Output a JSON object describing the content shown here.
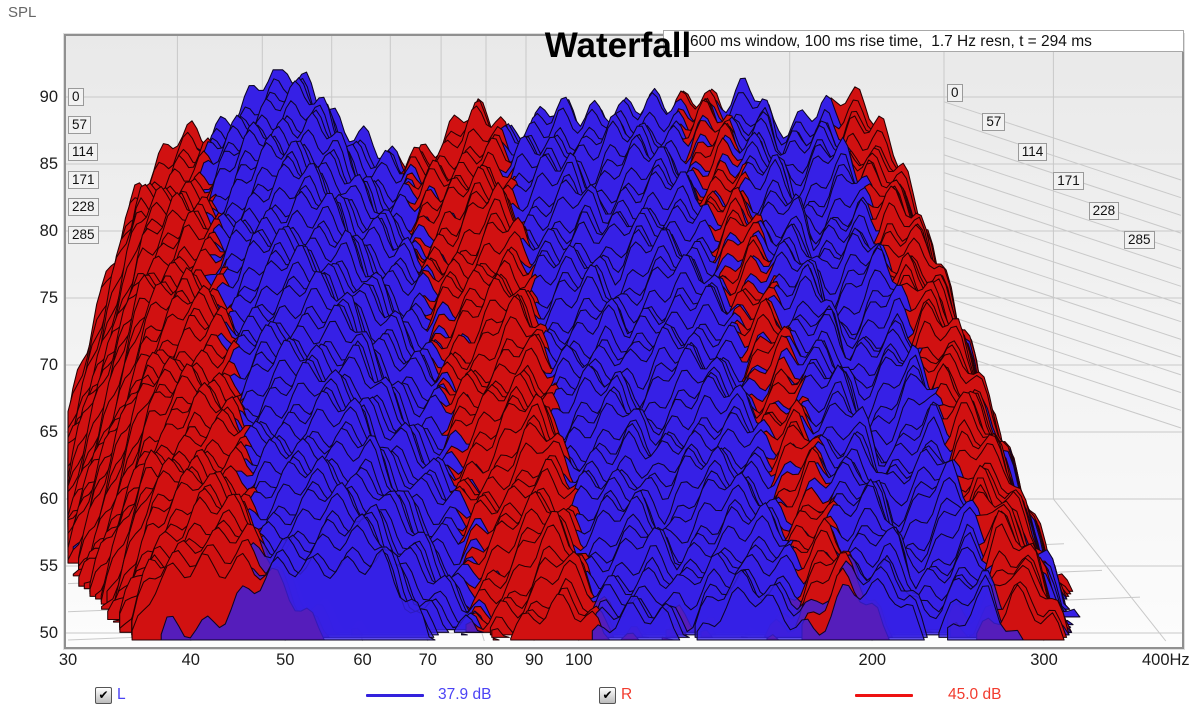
{
  "page": {
    "bg": "#ffffff"
  },
  "chart_data": {
    "type": "waterfall",
    "title": "Waterfall",
    "status_text": "600 ms window, 100 ms rise time,  1.7 Hz resn, t = 294 ms",
    "spl_axis": {
      "label": "SPL",
      "ticks": [
        90,
        85,
        80,
        75,
        70,
        65,
        60,
        55,
        50
      ],
      "min": 50,
      "max": 90
    },
    "freq_axis": {
      "unit": "Hz",
      "ticks": [
        {
          "f": 30,
          "label": "30"
        },
        {
          "f": 40,
          "label": "40"
        },
        {
          "f": 50,
          "label": "50"
        },
        {
          "f": 60,
          "label": "60"
        },
        {
          "f": 70,
          "label": "70"
        },
        {
          "f": 80,
          "label": "80"
        },
        {
          "f": 90,
          "label": "90"
        },
        {
          "f": 100,
          "label": "100"
        },
        {
          "f": 200,
          "label": "200"
        },
        {
          "f": 300,
          "label": "300"
        },
        {
          "f": 400,
          "label": "400Hz"
        }
      ]
    },
    "time_axis": {
      "labels": [
        "0",
        "57",
        "114",
        "171",
        "228",
        "285"
      ],
      "step_ms": 57,
      "total_ms": 294
    },
    "slices": 56,
    "grid_color": "#c9c9c9",
    "bg_top": "#e9e9e9",
    "bg_bottom": "#fcfcfc",
    "frame_color": "#909090",
    "series": [
      {
        "id": "R",
        "legend_label": "R",
        "level_label": "45.0 dB",
        "fill": "#d11111",
        "stroke": "#260103",
        "text_color": "#f23b2e",
        "points": [
          [
            30,
            58,
            20
          ],
          [
            33,
            70,
            24
          ],
          [
            36,
            81,
            26
          ],
          [
            40,
            84.5,
            26
          ],
          [
            44,
            85,
            27
          ],
          [
            48,
            83.5,
            29
          ],
          [
            52,
            82,
            31
          ],
          [
            56,
            80.5,
            33
          ],
          [
            60,
            80,
            35
          ],
          [
            65,
            81.5,
            36
          ],
          [
            70,
            82.5,
            37
          ],
          [
            75,
            84.5,
            36
          ],
          [
            80,
            85.5,
            35
          ],
          [
            85,
            87.5,
            34
          ],
          [
            88,
            88,
            34
          ],
          [
            92,
            87,
            35
          ],
          [
            95,
            86,
            36
          ],
          [
            100,
            84.5,
            36
          ],
          [
            107,
            85.5,
            36
          ],
          [
            113,
            86.5,
            37
          ],
          [
            120,
            85,
            37
          ],
          [
            128,
            84,
            37
          ],
          [
            135,
            85.5,
            36
          ],
          [
            143,
            87,
            36
          ],
          [
            150,
            88.5,
            35
          ],
          [
            158,
            90,
            34
          ],
          [
            165,
            89.5,
            35
          ],
          [
            172,
            88,
            36
          ],
          [
            180,
            85,
            37
          ],
          [
            188,
            83,
            37
          ],
          [
            196,
            84,
            37
          ],
          [
            205,
            85.5,
            36
          ],
          [
            213,
            86,
            36
          ],
          [
            222,
            87.5,
            35
          ],
          [
            230,
            88.5,
            33
          ],
          [
            240,
            88,
            34
          ],
          [
            250,
            87,
            35
          ],
          [
            258,
            85,
            36
          ],
          [
            266,
            82,
            36
          ],
          [
            275,
            77,
            33
          ],
          [
            285,
            70,
            28
          ],
          [
            295,
            62,
            20
          ],
          [
            305,
            55,
            14
          ]
        ]
      },
      {
        "id": "L",
        "legend_label": "L",
        "level_label": "37.9 dB",
        "fill": "#3620e6",
        "stroke": "#0c0526",
        "text_color": "#4b43f5",
        "points": [
          [
            30,
            55,
            16
          ],
          [
            34,
            64,
            20
          ],
          [
            37,
            75,
            24
          ],
          [
            40,
            79,
            27
          ],
          [
            43,
            84.5,
            30
          ],
          [
            47,
            88.5,
            32
          ],
          [
            50,
            90.3,
            33
          ],
          [
            53,
            91,
            33
          ],
          [
            56,
            90.5,
            33
          ],
          [
            59,
            89,
            32
          ],
          [
            62,
            86.5,
            33
          ],
          [
            65,
            85,
            34
          ],
          [
            68,
            83.5,
            35
          ],
          [
            72,
            83,
            36
          ],
          [
            76,
            83,
            36
          ],
          [
            80,
            83,
            36
          ],
          [
            85,
            83.5,
            36
          ],
          [
            90,
            84.5,
            36
          ],
          [
            95,
            86.5,
            36
          ],
          [
            100,
            87.5,
            36
          ],
          [
            108,
            88.5,
            36
          ],
          [
            115,
            87,
            37
          ],
          [
            122,
            88.5,
            36
          ],
          [
            130,
            89,
            35
          ],
          [
            140,
            88.5,
            35
          ],
          [
            150,
            87.5,
            36
          ],
          [
            160,
            88.5,
            34
          ],
          [
            170,
            89,
            34
          ],
          [
            178,
            89.5,
            34
          ],
          [
            185,
            88.5,
            35
          ],
          [
            192,
            85.5,
            36
          ],
          [
            200,
            86.5,
            36
          ],
          [
            210,
            88,
            35
          ],
          [
            218,
            88.5,
            34
          ],
          [
            228,
            86.5,
            35
          ],
          [
            238,
            85.5,
            36
          ],
          [
            248,
            85,
            36
          ],
          [
            258,
            83.5,
            36
          ],
          [
            268,
            80,
            34
          ],
          [
            278,
            73,
            29
          ],
          [
            288,
            65,
            23
          ],
          [
            298,
            58,
            17
          ],
          [
            305,
            54,
            13
          ]
        ]
      }
    ]
  },
  "legend": {
    "l_line_color": "#3322dd",
    "r_line_color": "#ee1111"
  }
}
